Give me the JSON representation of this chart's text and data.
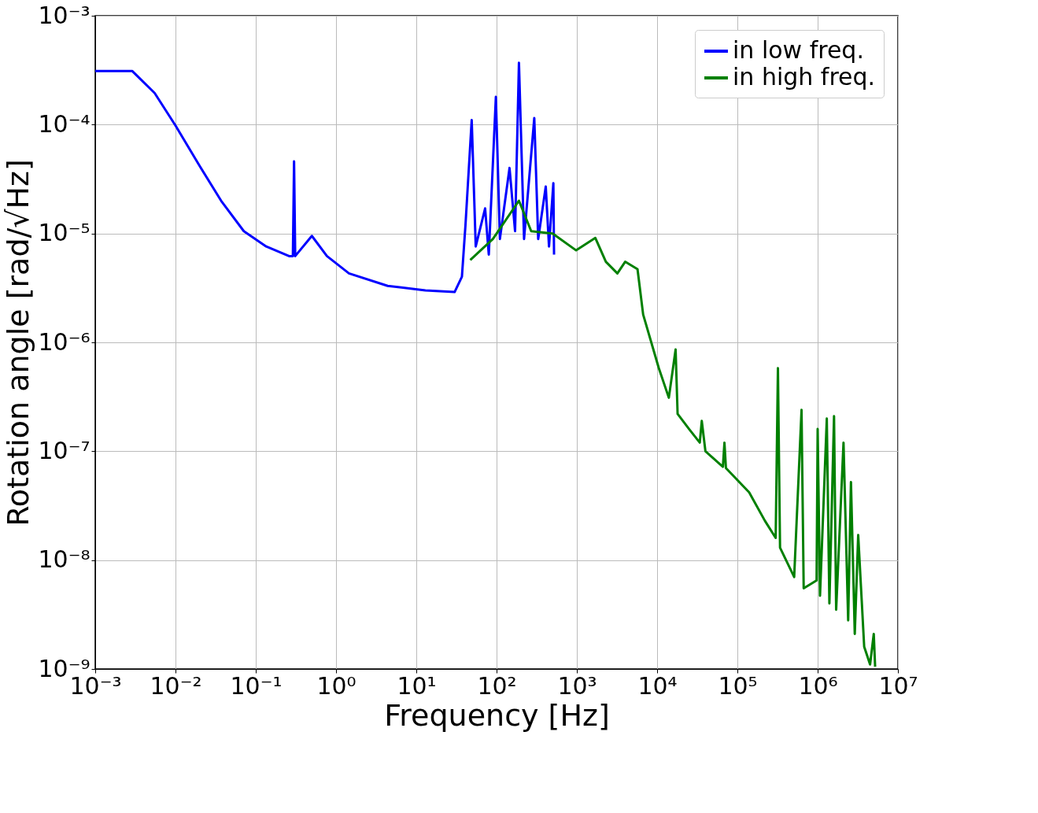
{
  "chart_data": {
    "type": "line",
    "xlabel": "Frequency [Hz]",
    "ylabel": "Rotation angle [rad/√Hz]",
    "log": "xy",
    "grid": true,
    "legend": "top right",
    "xlim": [
      0.001,
      10000000
    ],
    "ylim": [
      1e-09,
      0.001
    ],
    "xticks": [
      {
        "value": 0.001,
        "label": "10⁻³"
      },
      {
        "value": 0.01,
        "label": "10⁻²"
      },
      {
        "value": 0.1,
        "label": "10⁻¹"
      },
      {
        "value": 1,
        "label": "10⁰"
      },
      {
        "value": 10,
        "label": "10¹"
      },
      {
        "value": 100,
        "label": "10²"
      },
      {
        "value": 1000,
        "label": "10³"
      },
      {
        "value": 10000,
        "label": "10⁴"
      },
      {
        "value": 100000,
        "label": "10⁵"
      },
      {
        "value": 1000000,
        "label": "10⁶"
      },
      {
        "value": 10000000,
        "label": "10⁷"
      }
    ],
    "yticks": [
      {
        "value": 1e-09,
        "label": "10⁻⁹"
      },
      {
        "value": 1e-08,
        "label": "10⁻⁸"
      },
      {
        "value": 1e-07,
        "label": "10⁻⁷"
      },
      {
        "value": 1e-06,
        "label": "10⁻⁶"
      },
      {
        "value": 1e-05,
        "label": "10⁻⁵"
      },
      {
        "value": 0.0001,
        "label": "10⁻⁴"
      },
      {
        "value": 0.001,
        "label": "10⁻³"
      }
    ],
    "series": [
      {
        "name": "in low freq.",
        "color": "#0000ff",
        "x": [
          0.001,
          0.0029,
          0.0055,
          0.01,
          0.0195,
          0.037,
          0.071,
          0.135,
          0.26,
          0.29,
          0.3,
          0.31,
          0.5,
          0.77,
          1.45,
          4.4,
          13,
          30,
          37,
          41,
          49,
          55,
          72,
          80,
          98,
          110,
          145,
          170,
          190,
          220,
          295,
          330,
          410,
          450,
          510,
          520
        ],
        "values": [
          0.00031,
          0.00031,
          0.000195,
          9.8e-05,
          4.3e-05,
          2e-05,
          1.05e-05,
          7.6e-06,
          6.2e-06,
          6.2e-06,
          4.6e-05,
          6.2e-06,
          9.5e-06,
          6.2e-06,
          4.3e-06,
          3.3e-06,
          3e-06,
          2.9e-06,
          4e-06,
          1.2e-05,
          0.00011,
          7.6e-06,
          1.7e-05,
          6.4e-06,
          0.00018,
          8.9e-06,
          4e-05,
          1.05e-05,
          0.00037,
          8.9e-06,
          0.000115,
          8.9e-06,
          2.7e-05,
          7.6e-06,
          2.9e-05,
          6.4e-06
        ]
      },
      {
        "name": "in high freq.",
        "color": "#008000",
        "x": [
          47,
          90,
          190,
          270,
          500,
          980,
          1700,
          2300,
          3200,
          4000,
          5700,
          6700,
          10500,
          14000,
          17000,
          18000,
          25000,
          34000,
          36000,
          40000,
          66000,
          69000,
          72000,
          140000,
          220000,
          300000,
          320000,
          340000,
          510000,
          630000,
          670000,
          970000,
          1000000,
          1070000,
          1300000,
          1400000,
          1600000,
          1700000,
          2100000,
          2400000,
          2600000,
          2900000,
          3200000,
          3800000,
          4500000,
          5000000,
          5200000
        ],
        "values": [
          5.7e-06,
          8.9e-06,
          2e-05,
          1.05e-05,
          1e-05,
          7e-06,
          9.1e-06,
          5.5e-06,
          4.3e-06,
          5.5e-06,
          4.7e-06,
          1.8e-06,
          5.8e-07,
          3.1e-07,
          8.6e-07,
          2.2e-07,
          1.6e-07,
          1.2e-07,
          1.9e-07,
          1e-07,
          7.2e-08,
          1.2e-07,
          7e-08,
          4.2e-08,
          2.3e-08,
          1.6e-08,
          5.8e-07,
          1.3e-08,
          7e-09,
          2.4e-07,
          5.5e-09,
          6.5e-09,
          1.6e-07,
          4.7e-09,
          2e-07,
          4e-09,
          2.1e-07,
          3.5e-09,
          1.2e-07,
          2.8e-09,
          5.2e-08,
          2.1e-09,
          1.7e-08,
          1.6e-09,
          1.1e-09,
          2.1e-09,
          1.05e-09
        ]
      }
    ]
  }
}
